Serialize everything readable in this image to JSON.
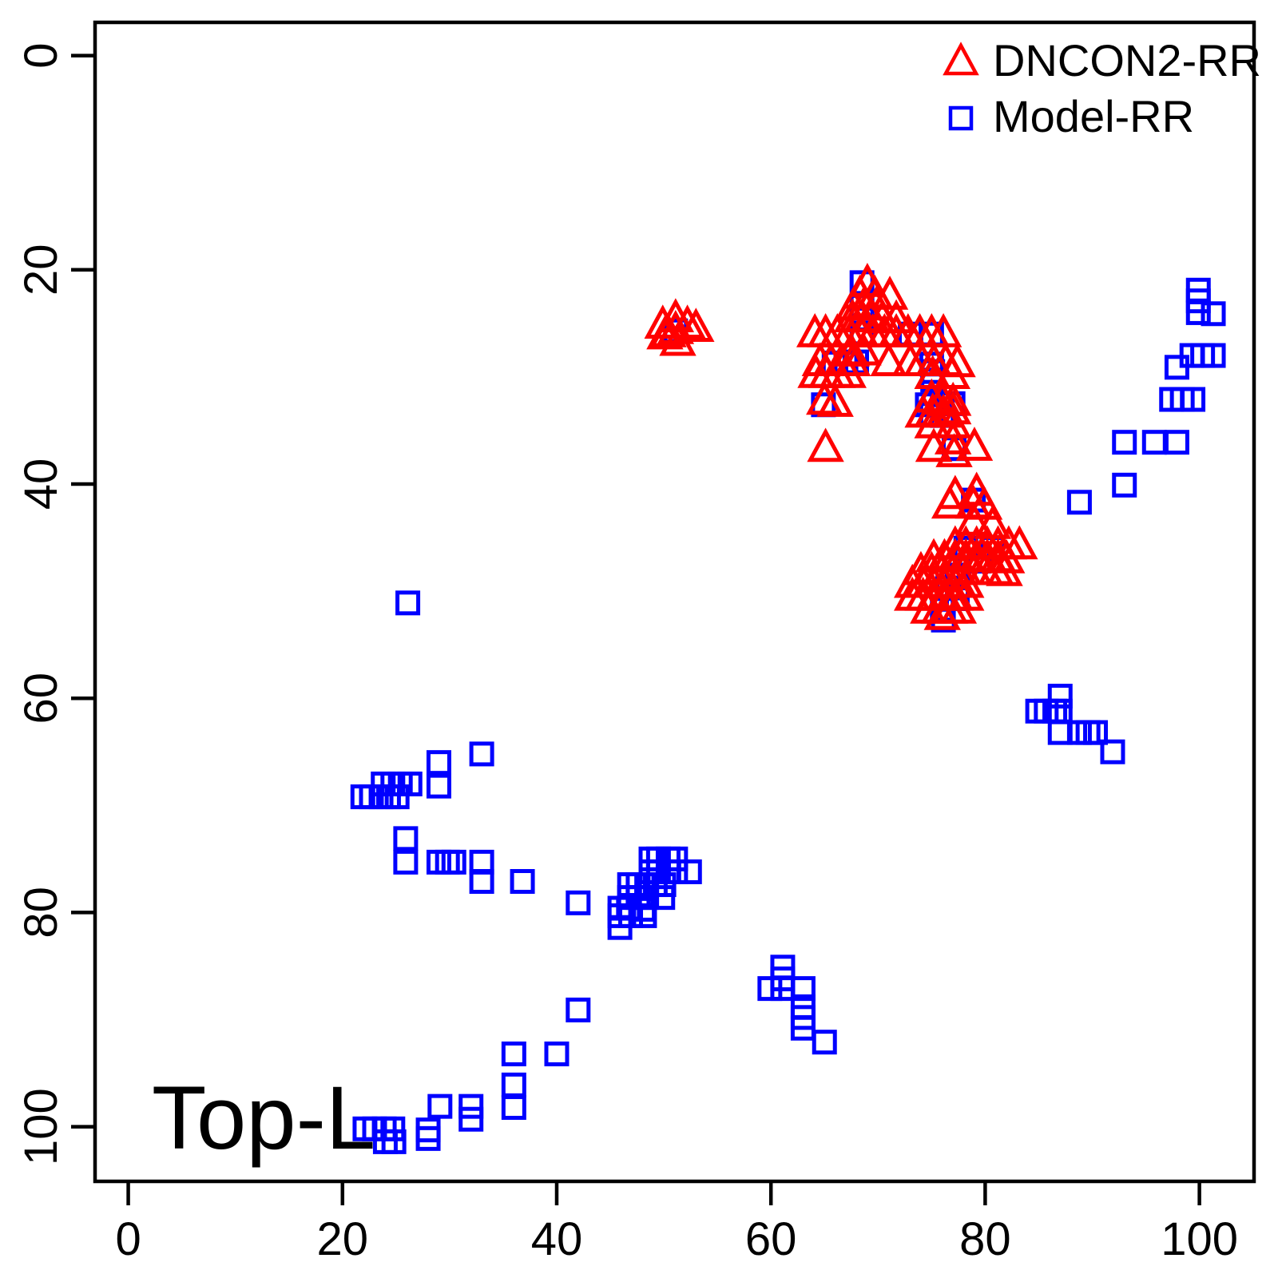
{
  "chart_data": {
    "type": "scatter",
    "title": "",
    "xlabel": "",
    "ylabel": "",
    "corner_label": "Top-L",
    "x_ticks": [
      "0",
      "20",
      "40",
      "60",
      "80",
      "100"
    ],
    "y_ticks": [
      "0",
      "20",
      "40",
      "60",
      "80",
      "100"
    ],
    "x_tick_values": [
      0,
      20,
      40,
      60,
      80,
      100
    ],
    "y_tick_values": [
      0,
      20,
      40,
      60,
      80,
      100
    ],
    "xlim": [
      -3.1,
      105.1
    ],
    "ylim": [
      -3.1,
      105.1
    ],
    "y_axis_inverted": true,
    "grid": false,
    "legend": {
      "position": "top-right",
      "entries": [
        {
          "label": "DNCON2-RR",
          "marker": "triangle",
          "color": "#ff0000"
        },
        {
          "label": "Model-RR",
          "marker": "square",
          "color": "#0000ff"
        }
      ]
    },
    "series": [
      {
        "name": "Model-RR",
        "marker": "square",
        "color": "#0000ff",
        "points": [
          [
            51.1,
            25.7
          ],
          [
            68.5,
            21.2
          ],
          [
            68.5,
            23.4
          ],
          [
            68.5,
            24.6
          ],
          [
            68.5,
            25.9
          ],
          [
            73.0,
            26.0
          ],
          [
            75.0,
            26.0
          ],
          [
            65.9,
            28.7
          ],
          [
            67.0,
            28.7
          ],
          [
            68.0,
            28.6
          ],
          [
            75.0,
            28.8
          ],
          [
            75.1,
            29.5
          ],
          [
            75.1,
            30.3
          ],
          [
            64.9,
            32.6
          ],
          [
            74.6,
            32.6
          ],
          [
            76.0,
            32.5
          ],
          [
            77.0,
            32.5
          ],
          [
            75.0,
            33.5
          ],
          [
            76.0,
            33.6
          ],
          [
            77.1,
            36.7
          ],
          [
            78.9,
            41.5
          ],
          [
            78.2,
            46.0
          ],
          [
            80.7,
            46.0
          ],
          [
            79.4,
            47.2
          ],
          [
            77.4,
            48.5
          ],
          [
            76.5,
            49.7
          ],
          [
            77.4,
            50.7
          ],
          [
            76.0,
            51.7
          ],
          [
            76.1,
            52.7
          ],
          [
            99.9,
            21.9
          ],
          [
            99.9,
            22.9
          ],
          [
            99.9,
            24.0
          ],
          [
            101.3,
            24.1
          ],
          [
            99.3,
            28.0
          ],
          [
            100.3,
            28.0
          ],
          [
            101.3,
            28.0
          ],
          [
            97.9,
            29.1
          ],
          [
            97.4,
            32.1
          ],
          [
            98.4,
            32.1
          ],
          [
            99.4,
            32.1
          ],
          [
            93.0,
            36.1
          ],
          [
            95.8,
            36.1
          ],
          [
            97.9,
            36.1
          ],
          [
            93.0,
            40.1
          ],
          [
            88.8,
            41.7
          ],
          [
            87.0,
            59.8
          ],
          [
            84.9,
            61.2
          ],
          [
            85.7,
            61.2
          ],
          [
            86.5,
            61.2
          ],
          [
            87.0,
            61.2
          ],
          [
            87.0,
            63.2
          ],
          [
            88.8,
            63.2
          ],
          [
            89.6,
            63.2
          ],
          [
            90.3,
            63.2
          ],
          [
            91.9,
            65.0
          ],
          [
            26.1,
            51.1
          ],
          [
            33.0,
            65.2
          ],
          [
            29.0,
            66.0
          ],
          [
            29.0,
            68.2
          ],
          [
            23.8,
            68.0
          ],
          [
            24.7,
            68.0
          ],
          [
            25.4,
            68.0
          ],
          [
            26.3,
            68.0
          ],
          [
            21.9,
            69.2
          ],
          [
            22.7,
            69.2
          ],
          [
            23.6,
            69.2
          ],
          [
            24.3,
            69.2
          ],
          [
            25.1,
            69.2
          ],
          [
            25.9,
            73.1
          ],
          [
            25.9,
            75.3
          ],
          [
            29.0,
            75.3
          ],
          [
            29.8,
            75.3
          ],
          [
            30.4,
            75.3
          ],
          [
            33.0,
            75.3
          ],
          [
            33.0,
            77.1
          ],
          [
            36.8,
            77.1
          ],
          [
            48.8,
            75.0
          ],
          [
            49.5,
            75.0
          ],
          [
            50.4,
            75.0
          ],
          [
            51.1,
            75.0
          ],
          [
            48.8,
            76.2
          ],
          [
            49.5,
            76.2
          ],
          [
            50.4,
            76.2
          ],
          [
            51.1,
            76.2
          ],
          [
            52.4,
            76.2
          ],
          [
            46.8,
            77.4
          ],
          [
            47.6,
            77.4
          ],
          [
            48.4,
            77.4
          ],
          [
            49.2,
            77.4
          ],
          [
            50.0,
            77.4
          ],
          [
            46.8,
            78.6
          ],
          [
            47.6,
            78.6
          ],
          [
            48.4,
            78.6
          ],
          [
            49.9,
            78.6
          ],
          [
            45.9,
            79.6
          ],
          [
            46.7,
            79.6
          ],
          [
            48.1,
            79.7
          ],
          [
            45.9,
            80.3
          ],
          [
            46.9,
            80.3
          ],
          [
            48.2,
            80.3
          ],
          [
            45.9,
            81.4
          ],
          [
            42.0,
            79.1
          ],
          [
            61.1,
            85.1
          ],
          [
            61.1,
            86.2
          ],
          [
            59.9,
            87.1
          ],
          [
            61.1,
            87.1
          ],
          [
            63.0,
            87.1
          ],
          [
            63.0,
            88.8
          ],
          [
            63.0,
            89.8
          ],
          [
            63.0,
            90.8
          ],
          [
            65.0,
            92.1
          ],
          [
            42.0,
            89.1
          ],
          [
            36.0,
            93.2
          ],
          [
            40.0,
            93.2
          ],
          [
            36.0,
            96.1
          ],
          [
            29.1,
            98.1
          ],
          [
            32.0,
            98.1
          ],
          [
            32.0,
            99.3
          ],
          [
            36.0,
            98.2
          ],
          [
            28.0,
            100.3
          ],
          [
            28.0,
            101.1
          ],
          [
            22.1,
            100.2
          ],
          [
            23.0,
            100.2
          ],
          [
            23.9,
            100.2
          ],
          [
            24.7,
            100.2
          ],
          [
            24.0,
            101.4
          ],
          [
            24.8,
            101.4
          ]
        ]
      },
      {
        "name": "DNCON2-RR",
        "marker": "triangle",
        "color": "#ff0000",
        "points": [
          [
            49.9,
            25.2
          ],
          [
            50.4,
            26.0
          ],
          [
            51.1,
            24.6
          ],
          [
            51.1,
            25.7
          ],
          [
            51.3,
            26.8
          ],
          [
            52.2,
            25.2
          ],
          [
            53.0,
            25.5
          ],
          [
            50.1,
            26.2
          ],
          [
            69.0,
            21.3
          ],
          [
            68.3,
            22.4
          ],
          [
            69.7,
            22.4
          ],
          [
            71.1,
            22.5
          ],
          [
            67.7,
            23.5
          ],
          [
            68.7,
            23.4
          ],
          [
            69.8,
            23.5
          ],
          [
            67.6,
            24.6
          ],
          [
            68.5,
            24.6
          ],
          [
            69.4,
            24.6
          ],
          [
            70.4,
            24.7
          ],
          [
            71.7,
            24.7
          ],
          [
            64.1,
            26.0
          ],
          [
            65.1,
            26.0
          ],
          [
            66.2,
            26.0
          ],
          [
            67.3,
            26.0
          ],
          [
            68.4,
            26.0
          ],
          [
            69.5,
            26.0
          ],
          [
            70.6,
            26.0
          ],
          [
            71.7,
            26.0
          ],
          [
            72.8,
            26.0
          ],
          [
            73.9,
            26.0
          ],
          [
            75.0,
            26.0
          ],
          [
            76.1,
            26.0
          ],
          [
            67.5,
            27.8
          ],
          [
            68.6,
            27.7
          ],
          [
            64.6,
            28.7
          ],
          [
            65.6,
            28.7
          ],
          [
            66.6,
            28.7
          ],
          [
            67.6,
            28.7
          ],
          [
            71.0,
            28.7
          ],
          [
            73.0,
            28.7
          ],
          [
            74.1,
            28.7
          ],
          [
            75.2,
            28.7
          ],
          [
            76.3,
            28.7
          ],
          [
            77.4,
            28.8
          ],
          [
            64.2,
            29.8
          ],
          [
            65.2,
            29.8
          ],
          [
            66.2,
            29.8
          ],
          [
            67.2,
            29.8
          ],
          [
            75.1,
            29.9
          ],
          [
            76.9,
            29.9
          ],
          [
            65.0,
            32.3
          ],
          [
            66.0,
            32.5
          ],
          [
            75.0,
            32.1
          ],
          [
            76.0,
            32.3
          ],
          [
            77.0,
            32.4
          ],
          [
            74.2,
            33.5
          ],
          [
            75.1,
            33.4
          ],
          [
            76.1,
            33.5
          ],
          [
            77.0,
            33.2
          ],
          [
            75.1,
            34.5
          ],
          [
            77.0,
            34.5
          ],
          [
            65.1,
            36.7
          ],
          [
            75.2,
            36.7
          ],
          [
            77.0,
            36.0
          ],
          [
            77.1,
            37.2
          ],
          [
            79.0,
            36.6
          ],
          [
            77.2,
            41.1
          ],
          [
            79.2,
            40.8
          ],
          [
            76.7,
            42.0
          ],
          [
            78.9,
            42.0
          ],
          [
            79.9,
            42.1
          ],
          [
            78.9,
            43.6
          ],
          [
            80.7,
            43.9
          ],
          [
            77.2,
            45.8
          ],
          [
            78.2,
            45.8
          ],
          [
            79.2,
            45.8
          ],
          [
            80.2,
            45.8
          ],
          [
            81.2,
            45.8
          ],
          [
            82.2,
            45.8
          ],
          [
            83.2,
            45.8
          ],
          [
            75.2,
            47.0
          ],
          [
            76.2,
            47.0
          ],
          [
            77.2,
            47.0
          ],
          [
            78.2,
            47.0
          ],
          [
            79.2,
            47.0
          ],
          [
            80.2,
            47.0
          ],
          [
            81.2,
            47.0
          ],
          [
            82.0,
            47.1
          ],
          [
            74.0,
            48.2
          ],
          [
            75.0,
            48.2
          ],
          [
            76.0,
            48.2
          ],
          [
            77.0,
            48.2
          ],
          [
            78.0,
            48.2
          ],
          [
            79.0,
            48.2
          ],
          [
            80.0,
            48.2
          ],
          [
            81.0,
            48.2
          ],
          [
            81.8,
            48.3
          ],
          [
            73.2,
            49.4
          ],
          [
            74.2,
            49.4
          ],
          [
            75.2,
            49.4
          ],
          [
            76.2,
            49.4
          ],
          [
            77.2,
            49.4
          ],
          [
            78.2,
            49.4
          ],
          [
            73.2,
            50.6
          ],
          [
            74.2,
            50.6
          ],
          [
            75.2,
            50.6
          ],
          [
            76.2,
            50.6
          ],
          [
            77.2,
            50.6
          ],
          [
            78.2,
            50.6
          ],
          [
            74.7,
            51.8
          ],
          [
            75.7,
            51.8
          ],
          [
            76.7,
            51.8
          ],
          [
            77.5,
            51.8
          ],
          [
            76.0,
            52.4
          ]
        ]
      }
    ]
  },
  "colors": {
    "background": "#ffffff",
    "axis": "#000000",
    "dncon2": "#ff0000",
    "model": "#0000ff"
  }
}
